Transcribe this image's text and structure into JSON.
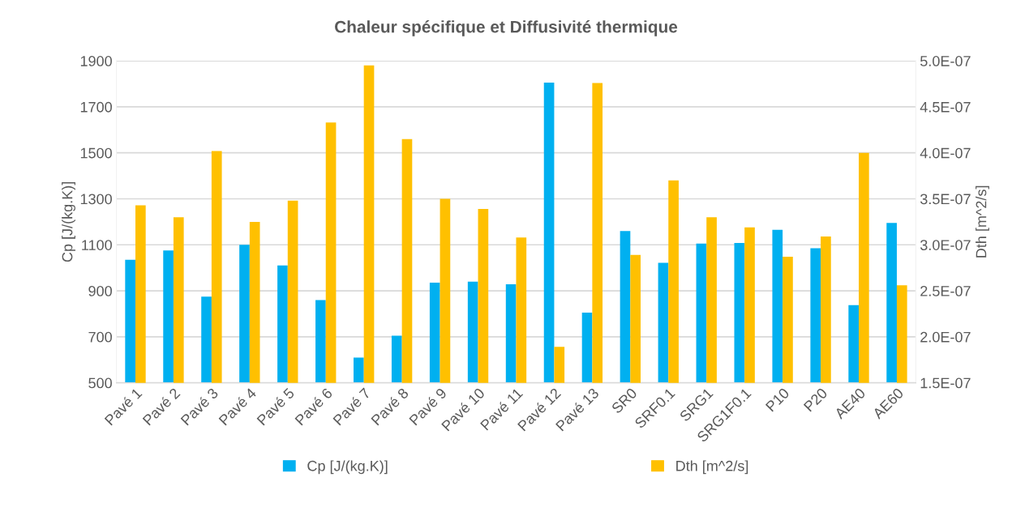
{
  "chart_data": {
    "type": "bar",
    "title": "Chaleur spécifique et Diffusivité thermique",
    "categories": [
      "Pavé 1",
      "Pavé 2",
      "Pavé 3",
      "Pavé 4",
      "Pavé 5",
      "Pavé 6",
      "Pavé 7",
      "Pavé 8",
      "Pavé 9",
      "Pavé 10",
      "Pavé 11",
      "Pavé 12",
      "Pavé 13",
      "SR0",
      "SRF0.1",
      "SRG1",
      "SRG1F0.1",
      "P10",
      "P20",
      "AE40",
      "AE60"
    ],
    "series": [
      {
        "name": "Cp [J/(kg.K)]",
        "color": "#00b0f0",
        "values": [
          1035,
          1075,
          875,
          1100,
          1010,
          860,
          610,
          705,
          935,
          940,
          928,
          1805,
          805,
          1160,
          1022,
          1105,
          1108,
          1165,
          1085,
          838,
          1195
        ]
      },
      {
        "name": "Dth [m^2/s]",
        "color": "#ffc000",
        "axis": "y2",
        "values": [
          3.43e-07,
          3.3e-07,
          4.02e-07,
          3.25e-07,
          3.48e-07,
          4.33e-07,
          4.95e-07,
          4.15e-07,
          3.5e-07,
          3.39e-07,
          3.08e-07,
          1.89e-07,
          4.76e-07,
          2.89e-07,
          3.7e-07,
          3.3e-07,
          3.19e-07,
          2.87e-07,
          3.09e-07,
          4e-07,
          2.56e-07
        ]
      }
    ],
    "ylabel": "Cp [J/(kg.K)]",
    "y2label": "Dth [m^2/s]",
    "ylim": [
      500,
      1900
    ],
    "yticks": [
      500,
      700,
      900,
      1100,
      1300,
      1500,
      1700,
      1900
    ],
    "y2lim": [
      1.5e-07,
      5e-07
    ],
    "y2ticks": [
      {
        "value": 1.5e-07,
        "label": "1.5E-07"
      },
      {
        "value": 2e-07,
        "label": "2.0E-07"
      },
      {
        "value": 2.5e-07,
        "label": "2.5E-07"
      },
      {
        "value": 3e-07,
        "label": "3.0E-07"
      },
      {
        "value": 3.5e-07,
        "label": "3.5E-07"
      },
      {
        "value": 4e-07,
        "label": "4.0E-07"
      },
      {
        "value": 4.5e-07,
        "label": "4.5E-07"
      },
      {
        "value": 5e-07,
        "label": "5.0E-07"
      }
    ],
    "grid": "y",
    "legend": "bottom"
  }
}
